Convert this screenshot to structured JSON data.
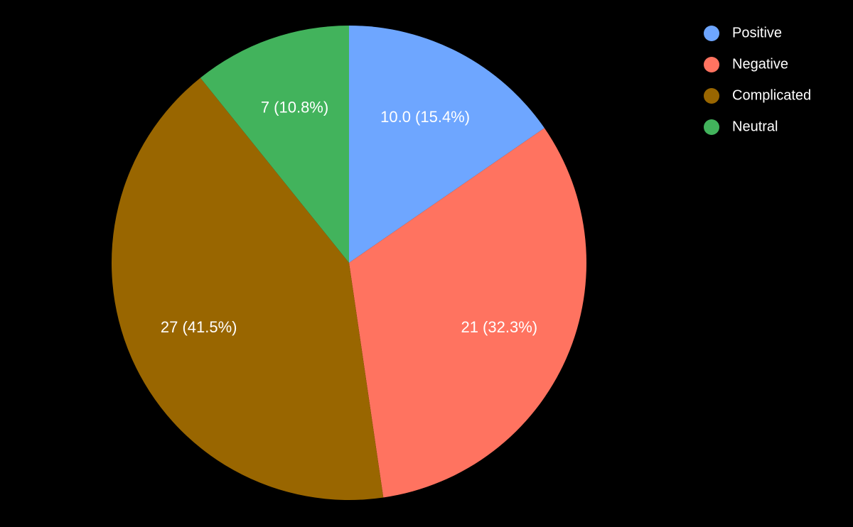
{
  "chart_data": {
    "type": "pie",
    "categories": [
      "Positive",
      "Negative",
      "Complicated",
      "Neutral"
    ],
    "values": [
      10,
      21,
      27,
      7
    ],
    "value_labels": [
      "10.0 (15.4%)",
      "21 (32.3%)",
      "27 (41.5%)",
      "7 (10.8%)"
    ],
    "colors": [
      "#6ea6ff",
      "#ff7360",
      "#996600",
      "#42b35c"
    ],
    "legend": "top-right"
  }
}
